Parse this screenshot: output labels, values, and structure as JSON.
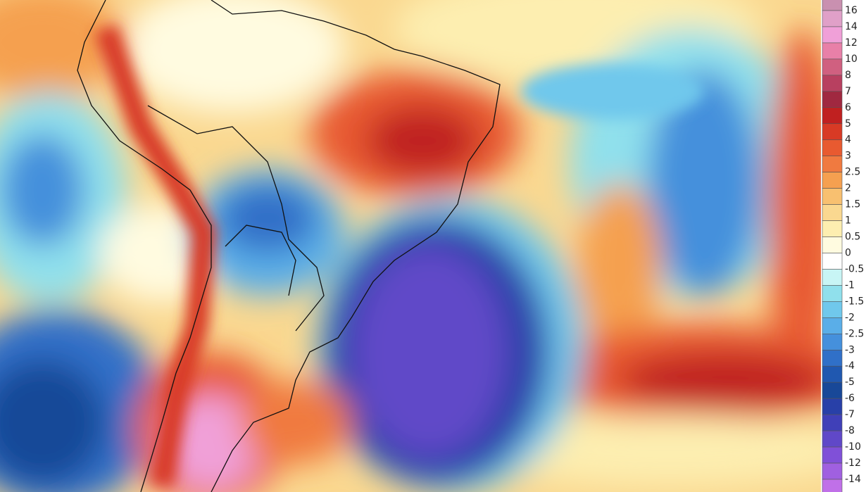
{
  "legend": {
    "labels": [
      "16",
      "14",
      "12",
      "10",
      "8",
      "7",
      "6",
      "5",
      "4",
      "3",
      "2.5",
      "2",
      "1.5",
      "1",
      "0.5",
      "0",
      "-0.5",
      "-1",
      "-1.5",
      "-2",
      "-2.5",
      "-3",
      "-4",
      "-5",
      "-6",
      "-7",
      "-8",
      "-10",
      "-12",
      "-14"
    ],
    "colors": [
      "#c990b0",
      "#e0a0c8",
      "#f0a0d8",
      "#e880a8",
      "#d06080",
      "#b84060",
      "#a02840",
      "#c02020",
      "#d83a25",
      "#e85a30",
      "#f07a40",
      "#f5a050",
      "#f8c070",
      "#fad890",
      "#fdeeb0",
      "#fffbe0",
      "#ffffff",
      "#c8f5f5",
      "#90e0ec",
      "#70c8ec",
      "#5aaee8",
      "#4590dc",
      "#3070c8",
      "#2058b0",
      "#184898",
      "#2840a8",
      "#4040b8",
      "#6048c8",
      "#8050d8",
      "#a060e0",
      "#c070e8"
    ]
  }
}
